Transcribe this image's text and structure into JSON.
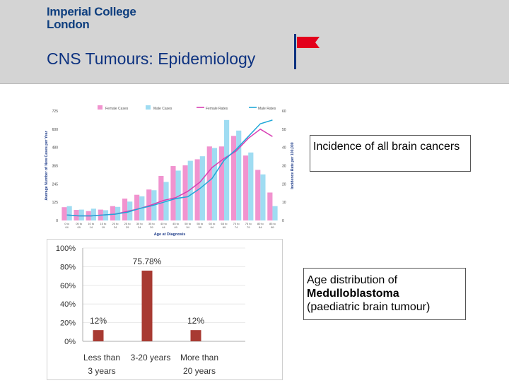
{
  "header": {
    "logo_line1": "Imperial College",
    "logo_line2": "London",
    "title": "CNS Tumours: Epidemiology",
    "flag_icon": "red-flag-icon"
  },
  "callouts": {
    "incidence": "Incidence of all brain cancers",
    "age_line1": "Age distribution of",
    "age_line2": "Medulloblastoma",
    "age_line3": "(paediatric brain tumour)"
  },
  "colors": {
    "navy": "#0d3280",
    "female": "#f193cf",
    "male": "#9fdcf2",
    "female_rate": "#d83fb4",
    "male_rate": "#21a8d8",
    "bar_red": "#a83a32",
    "flag_red": "#e3001b"
  },
  "chart_data": [
    {
      "type": "bar",
      "legend": [
        "Female Cases",
        "Male Cases",
        "Female Rates",
        "Male Rates"
      ],
      "xlabel": "Age at Diagnosis",
      "ylabel": "Average Number of New Cases per Year",
      "y2label": "Incidence Rate per 100,000",
      "y_ticks": [
        "0",
        "125",
        "245",
        "365",
        "480",
        "600",
        "725"
      ],
      "y2_ticks": [
        "0",
        "10",
        "20",
        "30",
        "40",
        "50",
        "60"
      ],
      "ylim": [
        0,
        725
      ],
      "y2lim": [
        0,
        60
      ],
      "categories": [
        [
          "0 to",
          "04"
        ],
        [
          "05 to",
          "09"
        ],
        [
          "10 to",
          "14"
        ],
        [
          "15 to",
          "19"
        ],
        [
          "20 to",
          "24"
        ],
        [
          "25 to",
          "29"
        ],
        [
          "30 to",
          "34"
        ],
        [
          "35 to",
          "39"
        ],
        [
          "40 to",
          "44"
        ],
        [
          "45 to",
          "49"
        ],
        [
          "50 to",
          "54"
        ],
        [
          "55 to",
          "59"
        ],
        [
          "60 to",
          "64"
        ],
        [
          "65 to",
          "69"
        ],
        [
          "70 to",
          "74"
        ],
        [
          "75 to",
          "79"
        ],
        [
          "80 to",
          "84"
        ],
        [
          "85 to",
          "89"
        ]
      ],
      "series": [
        {
          "name": "Female Cases",
          "kind": "bar",
          "values": [
            88,
            70,
            62,
            72,
            95,
            145,
            170,
            205,
            295,
            360,
            365,
            405,
            490,
            490,
            560,
            430,
            335,
            185
          ]
        },
        {
          "name": "Male Cases",
          "kind": "bar",
          "values": [
            95,
            72,
            78,
            68,
            90,
            125,
            160,
            200,
            255,
            330,
            395,
            425,
            480,
            665,
            595,
            450,
            305,
            95
          ]
        },
        {
          "name": "Female Rates",
          "kind": "line",
          "values": [
            3,
            2.5,
            2.5,
            3,
            3.5,
            5,
            6.5,
            8.5,
            11,
            12.5,
            16,
            21,
            29,
            34,
            38,
            45,
            50,
            46
          ]
        },
        {
          "name": "Male Rates",
          "kind": "line",
          "values": [
            3,
            2.5,
            2.5,
            3,
            3.5,
            4.5,
            6.5,
            8,
            10,
            12,
            13,
            17.5,
            23,
            33,
            39,
            46,
            53,
            55
          ]
        }
      ]
    },
    {
      "type": "bar",
      "categories": [
        [
          "Less than",
          "3 years"
        ],
        [
          "3-20 years",
          ""
        ],
        [
          "More than",
          "20 years"
        ]
      ],
      "values": [
        12,
        75.78,
        12
      ],
      "data_labels": [
        "12%",
        "75.78%",
        "12%"
      ],
      "y_ticks": [
        "0%",
        "20%",
        "40%",
        "60%",
        "80%",
        "100%"
      ],
      "ylim": [
        0,
        100
      ]
    }
  ]
}
